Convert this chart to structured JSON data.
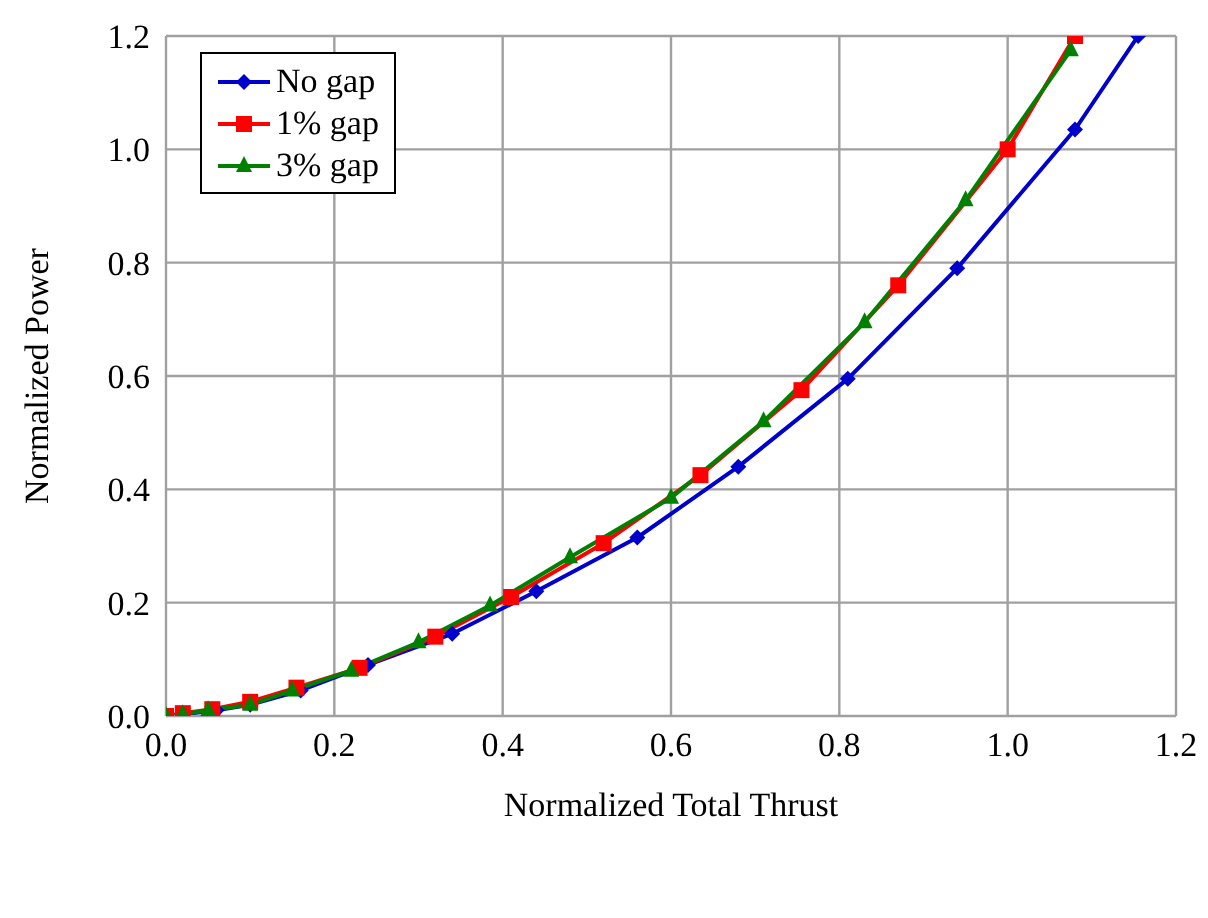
{
  "chart_data": {
    "type": "line",
    "xlabel": "Normalized Total Thrust",
    "ylabel": "Normalized Power",
    "xlim": [
      0,
      1.2
    ],
    "xticks": [
      {
        "value": 0,
        "label": "0.0"
      },
      {
        "value": 0.2,
        "label": "0.2"
      },
      {
        "value": 0.4,
        "label": "0.4"
      },
      {
        "value": 0.6,
        "label": "0.6"
      },
      {
        "value": 0.8,
        "label": "0.8"
      },
      {
        "value": 1,
        "label": "1.0"
      },
      {
        "value": 1.2,
        "label": "1.2"
      }
    ],
    "ylim": [
      0,
      1.2
    ],
    "yticks": [
      {
        "value": 0,
        "label": "0.0"
      },
      {
        "value": 0.2,
        "label": "0.2"
      },
      {
        "value": 0.4,
        "label": "0.4"
      },
      {
        "value": 0.6,
        "label": "0.6"
      },
      {
        "value": 0.8,
        "label": "0.8"
      },
      {
        "value": 1,
        "label": "1.0"
      },
      {
        "value": 1.2,
        "label": "1.2"
      }
    ],
    "grid": true,
    "legend": "top left",
    "line_style": "solid",
    "series": [
      {
        "name": "No gap",
        "color": "#0000cc",
        "marker": "diamond",
        "x": [
          0,
          0.02,
          0.06,
          0.1,
          0.16,
          0.24,
          0.34,
          0.44,
          0.56,
          0.68,
          0.81,
          0.94,
          1.08,
          1.155
        ],
        "values": [
          0,
          0.003,
          0.01,
          0.02,
          0.045,
          0.09,
          0.145,
          0.22,
          0.315,
          0.44,
          0.595,
          0.79,
          1.035,
          1.2
        ]
      },
      {
        "name": "1% gap",
        "color": "#ff0000",
        "marker": "square",
        "x": [
          0,
          0.02,
          0.055,
          0.1,
          0.155,
          0.23,
          0.32,
          0.41,
          0.52,
          0.635,
          0.755,
          0.87,
          1,
          1.08
        ],
        "values": [
          0,
          0.005,
          0.012,
          0.025,
          0.05,
          0.085,
          0.14,
          0.21,
          0.305,
          0.425,
          0.575,
          0.76,
          1,
          1.2
        ]
      },
      {
        "name": "3% gap",
        "color": "#008000",
        "marker": "triangle",
        "x": [
          0,
          0.02,
          0.05,
          0.1,
          0.15,
          0.22,
          0.3,
          0.385,
          0.48,
          0.6,
          0.71,
          0.83,
          0.95,
          1.075
        ],
        "values": [
          0,
          0.003,
          0.01,
          0.02,
          0.045,
          0.08,
          0.13,
          0.195,
          0.28,
          0.385,
          0.52,
          0.695,
          0.91,
          1.175
        ]
      }
    ]
  }
}
